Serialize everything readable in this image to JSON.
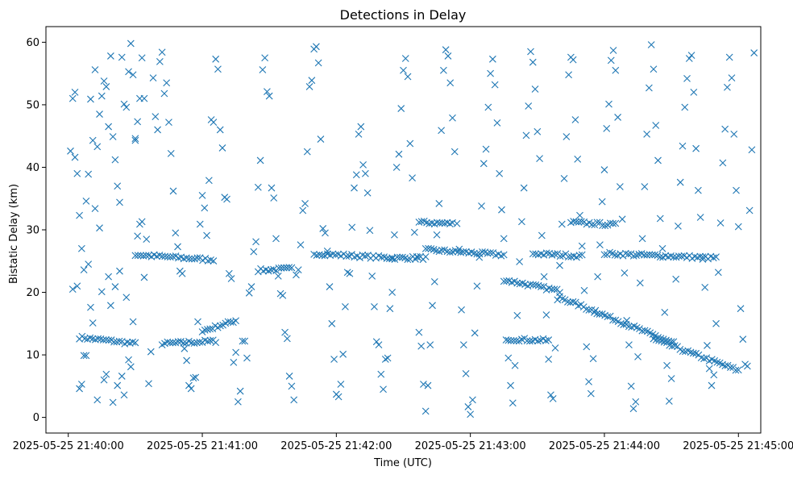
{
  "chart_data": {
    "type": "scatter",
    "title": "Detections in Delay",
    "xlabel": "Time (UTC)",
    "ylabel": "Bistatic Delay (km)",
    "x_unit": "seconds after 2025-05-25 21:40:00",
    "xlim": [
      -10,
      310
    ],
    "ylim": [
      -2.5,
      62.5
    ],
    "xticks": [
      {
        "value": 0,
        "label": "2025-05-25 21:40:00"
      },
      {
        "value": 60,
        "label": "2025-05-25 21:41:00"
      },
      {
        "value": 120,
        "label": "2025-05-25 21:42:00"
      },
      {
        "value": 180,
        "label": "2025-05-25 21:43:00"
      },
      {
        "value": 240,
        "label": "2025-05-25 21:44:00"
      },
      {
        "value": 300,
        "label": "2025-05-25 21:45:00"
      }
    ],
    "yticks": [
      0,
      10,
      20,
      30,
      40,
      50,
      60
    ],
    "marker": "x",
    "color": "#1f77b4",
    "grid": false,
    "tracks": [
      {
        "x": [
          5,
          30
        ],
        "y": [
          12.8,
          11.8
        ]
      },
      {
        "x": [
          42,
          66
        ],
        "y": [
          11.8,
          12.2
        ]
      },
      {
        "x": [
          60,
          75
        ],
        "y": [
          13.8,
          15.5
        ]
      },
      {
        "x": [
          30,
          65
        ],
        "y": [
          26,
          25.2
        ]
      },
      {
        "x": [
          85,
          100
        ],
        "y": [
          23.5,
          23.8
        ]
      },
      {
        "x": [
          110,
          145
        ],
        "y": [
          26.2,
          25.5
        ]
      },
      {
        "x": [
          145,
          160
        ],
        "y": [
          25.5,
          25.5
        ]
      },
      {
        "x": [
          160,
          195
        ],
        "y": [
          26.8,
          26
        ]
      },
      {
        "x": [
          157,
          172
        ],
        "y": [
          31.2,
          31.0
        ]
      },
      {
        "x": [
          195,
          220
        ],
        "y": [
          22,
          20.2
        ]
      },
      {
        "x": [
          197,
          215
        ],
        "y": [
          12.5,
          12.3
        ]
      },
      {
        "x": [
          220,
          270
        ],
        "y": [
          19.2,
          12
        ]
      },
      {
        "x": [
          262,
          300
        ],
        "y": [
          12.5,
          7.5
        ]
      },
      {
        "x": [
          208,
          230
        ],
        "y": [
          26.2,
          25.8
        ]
      },
      {
        "x": [
          240,
          290
        ],
        "y": [
          26.2,
          25.5
        ]
      },
      {
        "x": [
          225,
          245
        ],
        "y": [
          31.2,
          30.8
        ]
      }
    ],
    "scatter_points": [
      [
        1,
        42.6
      ],
      [
        2,
        51.0
      ],
      [
        3,
        52.0
      ],
      [
        3,
        41.6
      ],
      [
        4,
        39.0
      ],
      [
        5,
        32.3
      ],
      [
        6,
        27.0
      ],
      [
        7,
        23.6
      ],
      [
        8,
        34.6
      ],
      [
        9,
        38.9
      ],
      [
        10,
        50.9
      ],
      [
        11,
        44.3
      ],
      [
        12,
        55.6
      ],
      [
        13,
        43.3
      ],
      [
        14,
        48.5
      ],
      [
        15,
        51.4
      ],
      [
        16,
        53.8
      ],
      [
        17,
        52.9
      ],
      [
        18,
        46.5
      ],
      [
        19,
        57.8
      ],
      [
        20,
        44.9
      ],
      [
        21,
        41.2
      ],
      [
        22,
        37.0
      ],
      [
        23,
        34.4
      ],
      [
        24,
        57.6
      ],
      [
        25,
        50.1
      ],
      [
        26,
        49.6
      ],
      [
        27,
        55.3
      ],
      [
        28,
        59.8
      ],
      [
        29,
        54.8
      ],
      [
        30,
        44.6
      ],
      [
        31,
        47.3
      ],
      [
        32,
        51.0
      ],
      [
        33,
        57.5
      ],
      [
        34,
        51.0
      ],
      [
        2,
        20.5
      ],
      [
        4,
        21.0
      ],
      [
        5,
        4.6
      ],
      [
        6,
        5.3
      ],
      [
        7,
        9.9
      ],
      [
        8,
        9.9
      ],
      [
        9,
        24.5
      ],
      [
        10,
        17.6
      ],
      [
        11,
        15.1
      ],
      [
        12,
        33.4
      ],
      [
        13,
        2.8
      ],
      [
        14,
        30.3
      ],
      [
        15,
        20.1
      ],
      [
        16,
        6.0
      ],
      [
        17,
        6.9
      ],
      [
        18,
        22.5
      ],
      [
        19,
        17.9
      ],
      [
        20,
        2.4
      ],
      [
        21,
        20.9
      ],
      [
        22,
        5.1
      ],
      [
        23,
        23.4
      ],
      [
        24,
        6.6
      ],
      [
        25,
        3.6
      ],
      [
        26,
        19.2
      ],
      [
        27,
        9.2
      ],
      [
        28,
        8.1
      ],
      [
        29,
        15.3
      ],
      [
        30,
        44.3
      ],
      [
        31,
        29.0
      ],
      [
        32,
        30.9
      ],
      [
        33,
        31.3
      ],
      [
        34,
        22.4
      ],
      [
        35,
        28.5
      ],
      [
        36,
        5.4
      ],
      [
        37,
        10.5
      ],
      [
        38,
        54.3
      ],
      [
        39,
        48.1
      ],
      [
        40,
        46.0
      ],
      [
        41,
        56.9
      ],
      [
        42,
        58.4
      ],
      [
        43,
        51.8
      ],
      [
        44,
        53.5
      ],
      [
        45,
        47.2
      ],
      [
        46,
        42.2
      ],
      [
        47,
        36.2
      ],
      [
        48,
        29.5
      ],
      [
        49,
        27.3
      ],
      [
        50,
        23.4
      ],
      [
        51,
        23.0
      ],
      [
        52,
        11.0
      ],
      [
        53,
        9.1
      ],
      [
        54,
        5.1
      ],
      [
        55,
        4.6
      ],
      [
        56,
        6.3
      ],
      [
        57,
        6.4
      ],
      [
        58,
        15.3
      ],
      [
        59,
        30.9
      ],
      [
        60,
        35.5
      ],
      [
        61,
        33.5
      ],
      [
        62,
        29.1
      ],
      [
        63,
        37.9
      ],
      [
        64,
        47.6
      ],
      [
        65,
        47.2
      ],
      [
        66,
        57.3
      ],
      [
        67,
        55.7
      ],
      [
        68,
        46.0
      ],
      [
        69,
        43.1
      ],
      [
        70,
        35.2
      ],
      [
        71,
        34.9
      ],
      [
        72,
        23.0
      ],
      [
        73,
        22.2
      ],
      [
        74,
        8.8
      ],
      [
        75,
        10.4
      ],
      [
        76,
        2.5
      ],
      [
        77,
        4.2
      ],
      [
        78,
        12.2
      ],
      [
        79,
        12.2
      ],
      [
        80,
        9.5
      ],
      [
        81,
        19.9
      ],
      [
        82,
        20.9
      ],
      [
        83,
        26.5
      ],
      [
        84,
        28.1
      ],
      [
        85,
        36.8
      ],
      [
        86,
        41.1
      ],
      [
        87,
        55.6
      ],
      [
        88,
        57.5
      ],
      [
        89,
        52.1
      ],
      [
        90,
        51.4
      ],
      [
        91,
        36.7
      ],
      [
        92,
        35.1
      ],
      [
        93,
        28.6
      ],
      [
        94,
        22.6
      ],
      [
        95,
        19.8
      ],
      [
        96,
        19.5
      ],
      [
        97,
        13.6
      ],
      [
        98,
        12.6
      ],
      [
        99,
        6.6
      ],
      [
        100,
        5.0
      ],
      [
        101,
        2.8
      ],
      [
        102,
        22.8
      ],
      [
        103,
        23.6
      ],
      [
        104,
        27.6
      ],
      [
        105,
        33.1
      ],
      [
        106,
        34.2
      ],
      [
        107,
        42.5
      ],
      [
        108,
        52.9
      ],
      [
        109,
        53.9
      ],
      [
        110,
        58.9
      ],
      [
        111,
        59.3
      ],
      [
        112,
        56.7
      ],
      [
        113,
        44.5
      ],
      [
        114,
        30.2
      ],
      [
        115,
        29.5
      ],
      [
        116,
        26.6
      ],
      [
        117,
        20.9
      ],
      [
        118,
        15.0
      ],
      [
        119,
        9.3
      ],
      [
        120,
        3.7
      ],
      [
        121,
        3.3
      ],
      [
        122,
        5.3
      ],
      [
        123,
        10.1
      ],
      [
        124,
        17.7
      ],
      [
        125,
        23.2
      ],
      [
        126,
        23.0
      ],
      [
        127,
        30.4
      ],
      [
        128,
        36.7
      ],
      [
        129,
        38.8
      ],
      [
        130,
        45.3
      ],
      [
        131,
        46.5
      ],
      [
        132,
        40.4
      ],
      [
        133,
        39.0
      ],
      [
        134,
        35.9
      ],
      [
        135,
        29.9
      ],
      [
        136,
        22.6
      ],
      [
        137,
        17.7
      ],
      [
        138,
        12.1
      ],
      [
        139,
        11.6
      ],
      [
        140,
        6.9
      ],
      [
        141,
        4.5
      ],
      [
        142,
        9.3
      ],
      [
        143,
        9.5
      ],
      [
        144,
        17.4
      ],
      [
        145,
        20.0
      ],
      [
        146,
        29.2
      ],
      [
        147,
        40.0
      ],
      [
        148,
        42.1
      ],
      [
        149,
        49.4
      ],
      [
        150,
        55.5
      ],
      [
        151,
        57.4
      ],
      [
        152,
        54.5
      ],
      [
        153,
        43.8
      ],
      [
        154,
        38.3
      ],
      [
        155,
        29.6
      ],
      [
        156,
        25.7
      ],
      [
        157,
        13.6
      ],
      [
        158,
        11.4
      ],
      [
        159,
        5.3
      ],
      [
        160,
        1.0
      ],
      [
        161,
        5.1
      ],
      [
        162,
        11.6
      ],
      [
        163,
        17.9
      ],
      [
        164,
        21.7
      ],
      [
        165,
        29.2
      ],
      [
        166,
        34.2
      ],
      [
        167,
        45.9
      ],
      [
        168,
        55.5
      ],
      [
        169,
        58.8
      ],
      [
        170,
        57.8
      ],
      [
        171,
        53.5
      ],
      [
        172,
        47.9
      ],
      [
        173,
        42.5
      ],
      [
        174,
        31.0
      ],
      [
        175,
        26.9
      ],
      [
        176,
        17.2
      ],
      [
        177,
        11.6
      ],
      [
        178,
        7.0
      ],
      [
        179,
        1.7
      ],
      [
        180,
        0.5
      ],
      [
        181,
        2.8
      ],
      [
        182,
        13.5
      ],
      [
        183,
        21.0
      ],
      [
        184,
        25.6
      ],
      [
        185,
        33.8
      ],
      [
        186,
        40.6
      ],
      [
        187,
        42.9
      ],
      [
        188,
        49.6
      ],
      [
        189,
        55.0
      ],
      [
        190,
        57.3
      ],
      [
        191,
        53.2
      ],
      [
        192,
        47.1
      ],
      [
        193,
        39.0
      ],
      [
        194,
        33.2
      ],
      [
        195,
        28.6
      ],
      [
        196,
        12.4
      ],
      [
        197,
        9.5
      ],
      [
        198,
        5.1
      ],
      [
        199,
        2.3
      ],
      [
        200,
        8.3
      ],
      [
        201,
        16.3
      ],
      [
        202,
        24.9
      ],
      [
        203,
        31.3
      ],
      [
        204,
        36.7
      ],
      [
        205,
        45.1
      ],
      [
        206,
        49.8
      ],
      [
        207,
        58.5
      ],
      [
        208,
        56.8
      ],
      [
        209,
        52.5
      ],
      [
        210,
        45.7
      ],
      [
        211,
        41.4
      ],
      [
        212,
        29.1
      ],
      [
        213,
        22.5
      ],
      [
        214,
        16.4
      ],
      [
        215,
        9.3
      ],
      [
        216,
        3.6
      ],
      [
        217,
        3.0
      ],
      [
        218,
        11.1
      ],
      [
        219,
        18.8
      ],
      [
        220,
        24.3
      ],
      [
        221,
        30.9
      ],
      [
        222,
        38.2
      ],
      [
        223,
        44.9
      ],
      [
        224,
        54.8
      ],
      [
        225,
        57.6
      ],
      [
        226,
        57.2
      ],
      [
        227,
        47.6
      ],
      [
        228,
        41.3
      ],
      [
        229,
        32.3
      ],
      [
        230,
        27.4
      ],
      [
        231,
        20.3
      ],
      [
        232,
        11.3
      ],
      [
        233,
        5.7
      ],
      [
        234,
        3.8
      ],
      [
        235,
        9.4
      ],
      [
        236,
        17.1
      ],
      [
        237,
        22.5
      ],
      [
        238,
        27.6
      ],
      [
        239,
        34.5
      ],
      [
        240,
        39.6
      ],
      [
        241,
        46.2
      ],
      [
        242,
        50.1
      ],
      [
        243,
        57.1
      ],
      [
        244,
        58.7
      ],
      [
        245,
        55.5
      ],
      [
        246,
        48.0
      ],
      [
        247,
        36.9
      ],
      [
        248,
        31.7
      ],
      [
        249,
        23.1
      ],
      [
        250,
        15.5
      ],
      [
        251,
        11.6
      ],
      [
        252,
        5.0
      ],
      [
        253,
        1.4
      ],
      [
        254,
        2.5
      ],
      [
        255,
        9.7
      ],
      [
        256,
        21.5
      ],
      [
        257,
        28.6
      ],
      [
        258,
        36.9
      ],
      [
        259,
        45.3
      ],
      [
        260,
        52.7
      ],
      [
        261,
        59.6
      ],
      [
        262,
        55.7
      ],
      [
        263,
        46.7
      ],
      [
        264,
        41.1
      ],
      [
        265,
        31.8
      ],
      [
        266,
        27.0
      ],
      [
        267,
        16.8
      ],
      [
        268,
        8.3
      ],
      [
        269,
        2.6
      ],
      [
        270,
        6.2
      ],
      [
        271,
        12.1
      ],
      [
        272,
        22.1
      ],
      [
        273,
        30.6
      ],
      [
        274,
        37.6
      ],
      [
        275,
        43.4
      ],
      [
        276,
        49.6
      ],
      [
        277,
        54.2
      ],
      [
        278,
        57.4
      ],
      [
        279,
        57.9
      ],
      [
        280,
        52.0
      ],
      [
        281,
        43.0
      ],
      [
        282,
        36.3
      ],
      [
        283,
        32.0
      ],
      [
        284,
        25.3
      ],
      [
        285,
        20.8
      ],
      [
        286,
        11.5
      ],
      [
        287,
        7.8
      ],
      [
        288,
        5.1
      ],
      [
        289,
        6.8
      ],
      [
        290,
        15.0
      ],
      [
        291,
        23.2
      ],
      [
        292,
        31.1
      ],
      [
        293,
        40.7
      ],
      [
        294,
        46.1
      ],
      [
        295,
        52.8
      ],
      [
        296,
        57.6
      ],
      [
        297,
        54.3
      ],
      [
        298,
        45.3
      ],
      [
        299,
        36.3
      ],
      [
        300,
        30.5
      ],
      [
        301,
        17.4
      ],
      [
        302,
        12.5
      ],
      [
        303,
        8.5
      ],
      [
        304,
        8.2
      ],
      [
        305,
        33.1
      ],
      [
        306,
        42.8
      ],
      [
        307,
        58.3
      ]
    ]
  }
}
